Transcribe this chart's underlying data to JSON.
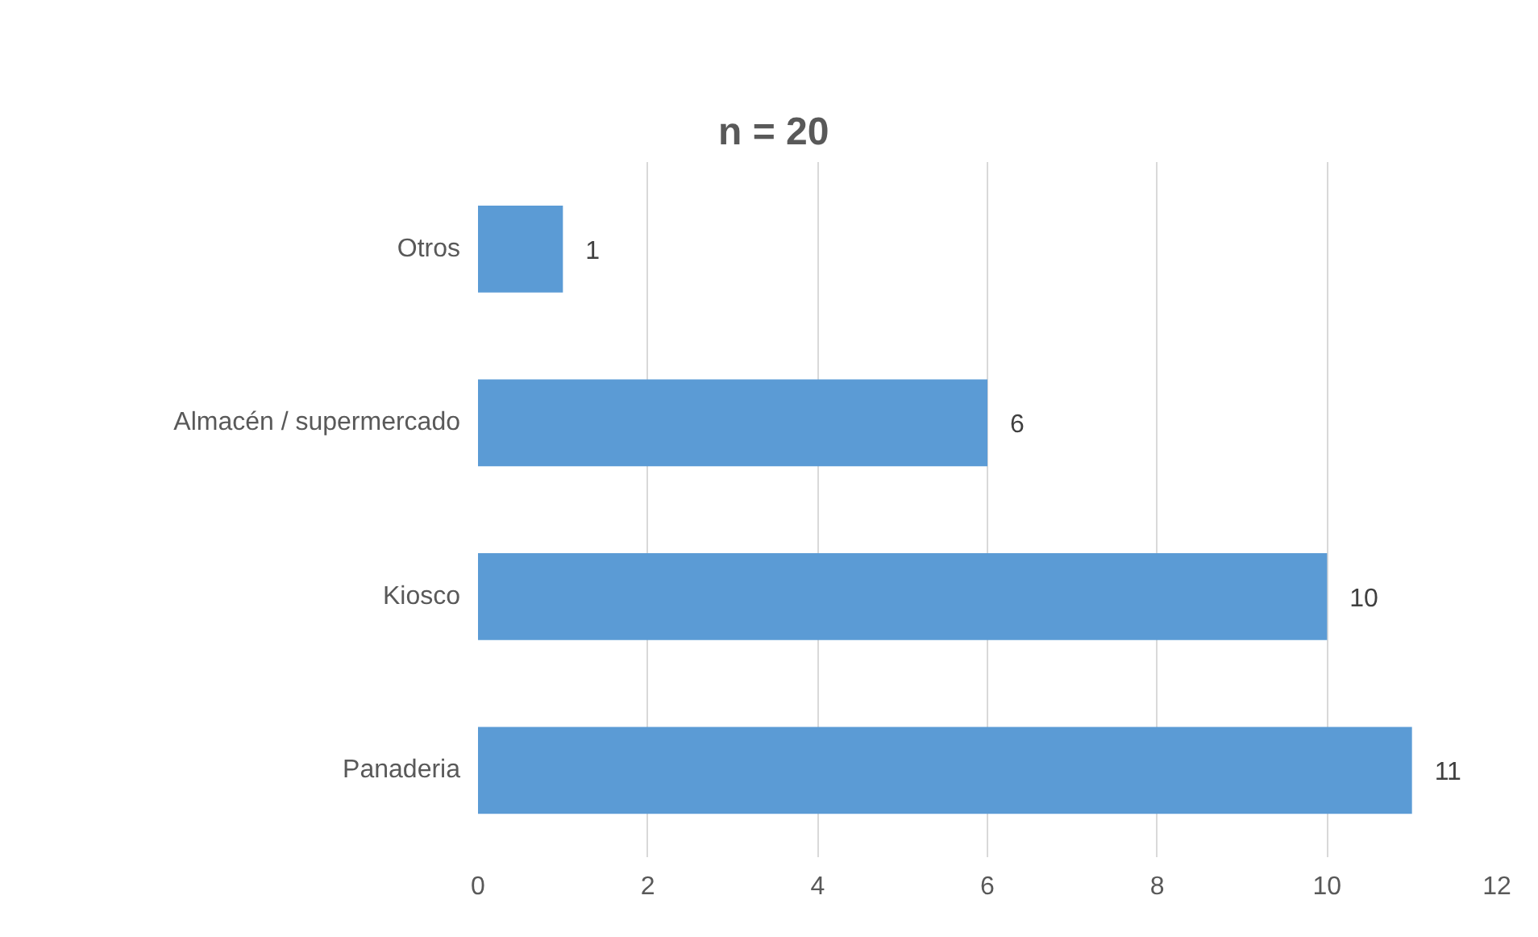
{
  "chart_data": {
    "type": "bar",
    "orientation": "horizontal",
    "title": "n = 20",
    "categories": [
      "Otros",
      "Almacén / supermercado",
      "Kiosco",
      "Panaderia"
    ],
    "values": [
      1,
      6,
      10,
      11
    ],
    "color": "#5b9bd5",
    "xlim": [
      0,
      12
    ],
    "xticks": [
      0,
      2,
      4,
      6,
      8,
      10,
      12
    ],
    "grid": "x",
    "data_labels": true
  }
}
